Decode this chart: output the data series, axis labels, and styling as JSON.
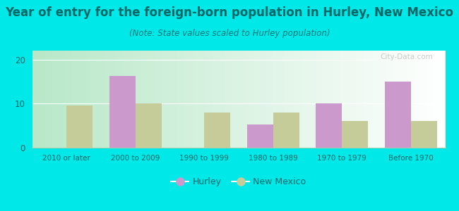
{
  "title": "Year of entry for the foreign-born population in Hurley, New Mexico",
  "subtitle": "(Note: State values scaled to Hurley population)",
  "categories": [
    "2010 or later",
    "2000 to 2009",
    "1990 to 1999",
    "1980 to 1989",
    "1970 to 1979",
    "Before 1970"
  ],
  "hurley_values": [
    0,
    16.3,
    0,
    5.2,
    10.0,
    15.0
  ],
  "nm_values": [
    9.6,
    10.0,
    8.0,
    8.0,
    6.0,
    6.0
  ],
  "hurley_color": "#cc99cc",
  "nm_color": "#c5cc99",
  "background_outer": "#00e8e8",
  "title_color": "#006666",
  "subtitle_color": "#007777",
  "title_fontsize": 12,
  "subtitle_fontsize": 8.5,
  "ylim": [
    0,
    22
  ],
  "yticks": [
    0,
    10,
    20
  ],
  "bar_width": 0.38,
  "legend_hurley": "Hurley",
  "legend_nm": "New Mexico",
  "watermark": "City-Data.com",
  "tick_color": "#006666",
  "axis_label_color": "#005555"
}
